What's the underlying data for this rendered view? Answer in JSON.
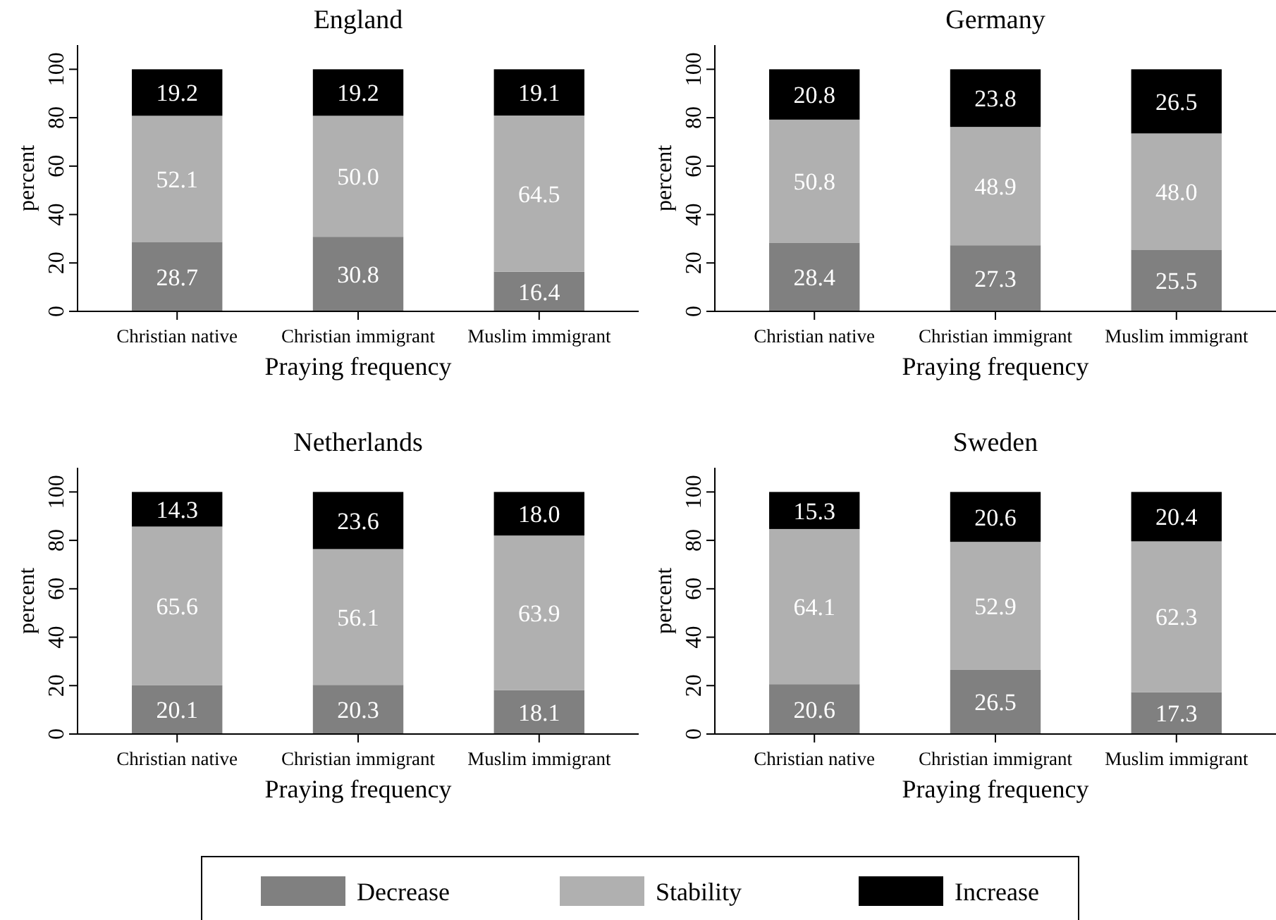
{
  "chart_data": [
    {
      "type": "bar",
      "stacked": true,
      "title": "England",
      "xlabel": "Praying frequency",
      "ylabel": "percent",
      "categories": [
        "Christian native",
        "Christian immigrant",
        "Muslim immigrant"
      ],
      "ylim": [
        0,
        110
      ],
      "yticks": [
        0,
        20,
        40,
        60,
        80,
        100
      ],
      "legend": "bottom",
      "series": [
        {
          "name": "Decrease",
          "color": "#808080",
          "values": [
            28.7,
            30.8,
            16.4
          ],
          "value_labels": [
            "28.7",
            "30.8",
            "16.4"
          ]
        },
        {
          "name": "Stability",
          "color": "#b0b0b0",
          "values": [
            52.1,
            50.0,
            64.5
          ],
          "value_labels": [
            "52.1",
            "50.0",
            "64.5"
          ]
        },
        {
          "name": "Increase",
          "color": "#000000",
          "values": [
            19.2,
            19.2,
            19.1
          ],
          "value_labels": [
            "19.2",
            "19.2",
            "19.1"
          ]
        }
      ]
    },
    {
      "type": "bar",
      "stacked": true,
      "title": "Germany",
      "xlabel": "Praying frequency",
      "ylabel": "percent",
      "categories": [
        "Christian native",
        "Christian immigrant",
        "Muslim immigrant"
      ],
      "ylim": [
        0,
        110
      ],
      "yticks": [
        0,
        20,
        40,
        60,
        80,
        100
      ],
      "series": [
        {
          "color": "#808080",
          "values": [
            28.4,
            27.3,
            25.5
          ],
          "value_labels": [
            "28.4",
            "27.3",
            "25.5"
          ]
        },
        {
          "color": "#b0b0b0",
          "values": [
            50.8,
            48.9,
            48.0
          ],
          "value_labels": [
            "50.8",
            "48.9",
            "48.0"
          ]
        },
        {
          "color": "#000000",
          "values": [
            20.8,
            23.8,
            26.5
          ],
          "value_labels": [
            "20.8",
            "23.8",
            "26.5"
          ]
        }
      ]
    },
    {
      "type": "bar",
      "stacked": true,
      "title": "Netherlands",
      "xlabel": "Praying frequency",
      "ylabel": "percent",
      "categories": [
        "Christian native",
        "Christian immigrant",
        "Muslim immigrant"
      ],
      "ylim": [
        0,
        110
      ],
      "yticks": [
        0,
        20,
        40,
        60,
        80,
        100
      ],
      "series": [
        {
          "color": "#808080",
          "values": [
            20.1,
            20.3,
            18.1
          ],
          "value_labels": [
            "20.1",
            "20.3",
            "18.1"
          ]
        },
        {
          "color": "#b0b0b0",
          "values": [
            65.6,
            56.1,
            63.9
          ],
          "value_labels": [
            "65.6",
            "56.1",
            "63.9"
          ]
        },
        {
          "color": "#000000",
          "values": [
            14.3,
            23.6,
            18.0
          ],
          "value_labels": [
            "14.3",
            "23.6",
            "18.0"
          ]
        }
      ]
    },
    {
      "type": "bar",
      "stacked": true,
      "title": "Sweden",
      "xlabel": "Praying frequency",
      "ylabel": "percent",
      "categories": [
        "Christian native",
        "Christian immigrant",
        "Muslim immigrant"
      ],
      "ylim": [
        0,
        110
      ],
      "yticks": [
        0,
        20,
        40,
        60,
        80,
        100
      ],
      "series": [
        {
          "color": "#808080",
          "values": [
            20.6,
            26.5,
            17.3
          ],
          "value_labels": [
            "20.6",
            "26.5",
            "17.3"
          ]
        },
        {
          "color": "#b0b0b0",
          "values": [
            64.1,
            52.9,
            62.3
          ],
          "value_labels": [
            "64.1",
            "52.9",
            "62.3"
          ]
        },
        {
          "color": "#000000",
          "values": [
            15.3,
            20.6,
            20.4
          ],
          "value_labels": [
            "15.3",
            "20.6",
            "20.4"
          ]
        }
      ]
    }
  ]
}
